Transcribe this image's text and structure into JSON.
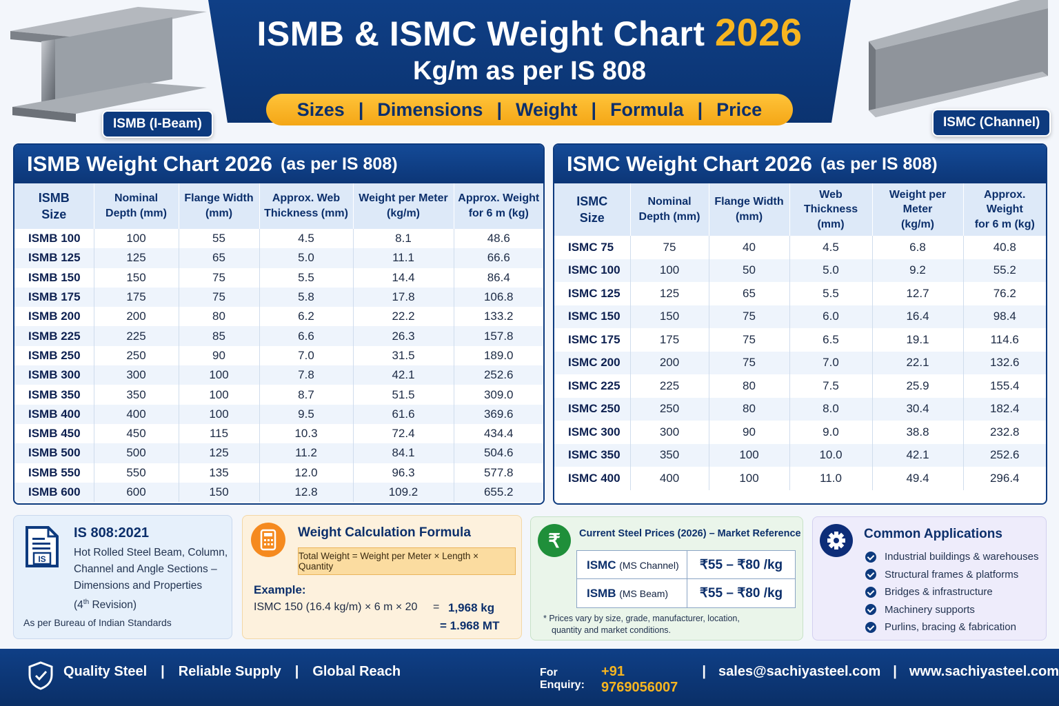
{
  "header": {
    "title": "ISMB & ISMC Weight Chart",
    "year": "2026",
    "subtitle": "Kg/m as per IS 808",
    "pills": [
      "Sizes",
      "Dimensions",
      "Weight",
      "Formula",
      "Price"
    ],
    "pill_sep": "|"
  },
  "images": {
    "left_tag": "ISMB (I-Beam)",
    "right_tag": "ISMC (Channel)"
  },
  "ismb": {
    "title": "ISMB Weight Chart 2026",
    "asper": "(as per IS 808)",
    "headers": [
      [
        "ISMB",
        "Size"
      ],
      [
        "Nominal",
        "Depth (mm)"
      ],
      [
        "Flange Width",
        "(mm)"
      ],
      [
        "Approx. Web",
        "Thickness (mm)"
      ],
      [
        "Weight per Meter",
        "(kg/m)"
      ],
      [
        "Approx. Weight",
        "for 6 m (kg)"
      ]
    ],
    "rows": [
      [
        "ISMB 100",
        "100",
        "55",
        "4.5",
        "8.1",
        "48.6"
      ],
      [
        "ISMB 125",
        "125",
        "65",
        "5.0",
        "11.1",
        "66.6"
      ],
      [
        "ISMB 150",
        "150",
        "75",
        "5.5",
        "14.4",
        "86.4"
      ],
      [
        "ISMB 175",
        "175",
        "75",
        "5.8",
        "17.8",
        "106.8"
      ],
      [
        "ISMB 200",
        "200",
        "80",
        "6.2",
        "22.2",
        "133.2"
      ],
      [
        "ISMB 225",
        "225",
        "85",
        "6.6",
        "26.3",
        "157.8"
      ],
      [
        "ISMB 250",
        "250",
        "90",
        "7.0",
        "31.5",
        "189.0"
      ],
      [
        "ISMB 300",
        "300",
        "100",
        "7.8",
        "42.1",
        "252.6"
      ],
      [
        "ISMB 350",
        "350",
        "100",
        "8.7",
        "51.5",
        "309.0"
      ],
      [
        "ISMB 400",
        "400",
        "100",
        "9.5",
        "61.6",
        "369.6"
      ],
      [
        "ISMB 450",
        "450",
        "115",
        "10.3",
        "72.4",
        "434.4"
      ],
      [
        "ISMB 500",
        "500",
        "125",
        "11.2",
        "84.1",
        "504.6"
      ],
      [
        "ISMB 550",
        "550",
        "135",
        "12.0",
        "96.3",
        "577.8"
      ],
      [
        "ISMB 600",
        "600",
        "150",
        "12.8",
        "109.2",
        "655.2"
      ]
    ]
  },
  "ismc": {
    "title": "ISMC Weight Chart 2026",
    "asper": "(as per IS 808)",
    "headers": [
      [
        "ISMC",
        "Size"
      ],
      [
        "Nominal",
        "Depth (mm)"
      ],
      [
        "Flange Width",
        "(mm)"
      ],
      [
        "Web Thickness",
        "(mm)"
      ],
      [
        "Weight per Meter",
        "(kg/m)"
      ],
      [
        "Approx. Weight",
        "for 6 m (kg)"
      ]
    ],
    "rows": [
      [
        "ISMC 75",
        "75",
        "40",
        "4.5",
        "6.8",
        "40.8"
      ],
      [
        "ISMC 100",
        "100",
        "50",
        "5.0",
        "9.2",
        "55.2"
      ],
      [
        "ISMC 125",
        "125",
        "65",
        "5.5",
        "12.7",
        "76.2"
      ],
      [
        "ISMC 150",
        "150",
        "75",
        "6.0",
        "16.4",
        "98.4"
      ],
      [
        "ISMC 175",
        "175",
        "75",
        "6.5",
        "19.1",
        "114.6"
      ],
      [
        "ISMC 200",
        "200",
        "75",
        "7.0",
        "22.1",
        "132.6"
      ],
      [
        "ISMC 225",
        "225",
        "80",
        "7.5",
        "25.9",
        "155.4"
      ],
      [
        "ISMC 250",
        "250",
        "80",
        "8.0",
        "30.4",
        "182.4"
      ],
      [
        "ISMC 300",
        "300",
        "90",
        "9.0",
        "38.8",
        "232.8"
      ],
      [
        "ISMC 350",
        "350",
        "100",
        "10.0",
        "42.1",
        "252.6"
      ],
      [
        "ISMC 400",
        "400",
        "100",
        "11.0",
        "49.4",
        "296.4"
      ]
    ]
  },
  "standard": {
    "icon_text": "IS",
    "title": "IS 808:2021",
    "lines": [
      "Hot Rolled Steel Beam, Column,",
      "Channel and Angle Sections –",
      "Dimensions and Properties"
    ],
    "revision_pre": "(4",
    "revision_sup": "th",
    "revision_post": " Revision)",
    "note": "As per Bureau of Indian Standards"
  },
  "formula": {
    "title": "Weight Calculation Formula",
    "formula": "Total Weight = Weight per Meter × Length × Quantity",
    "example_label": "Example:",
    "example": "ISMC 150 (16.4 kg/m) × 6 m × 20",
    "eq1": "=",
    "result1": "1,968 kg",
    "result2": "= 1.968 MT"
  },
  "prices": {
    "icon": "₹",
    "title": "Current Steel Prices (2026) – Market Reference",
    "rows": [
      {
        "name": "ISMC",
        "desc": "(MS Channel)",
        "price": "₹55 – ₹80 /kg"
      },
      {
        "name": "ISMB",
        "desc": "(MS Beam)",
        "price": "₹55 – ₹80 /kg"
      }
    ],
    "note1": "* Prices vary by size, grade, manufacturer, location,",
    "note2": "quantity and market conditions."
  },
  "applications": {
    "title": "Common Applications",
    "items": [
      "Industrial buildings & warehouses",
      "Structural frames & platforms",
      "Bridges & infrastructure",
      "Machinery supports",
      "Purlins, bracing & fabrication"
    ]
  },
  "footer": {
    "tags": [
      "Quality Steel",
      "Reliable Supply",
      "Global Reach"
    ],
    "sep": "|",
    "enquiry_label": "For Enquiry:",
    "phone": "+91 9769056007",
    "email": "sales@sachiyasteel.com",
    "website": "www.sachiyasteel.com"
  },
  "colors": {
    "navy": "#0d3a7e",
    "gold": "#f7b520",
    "light_blue": "#dde9f8"
  }
}
